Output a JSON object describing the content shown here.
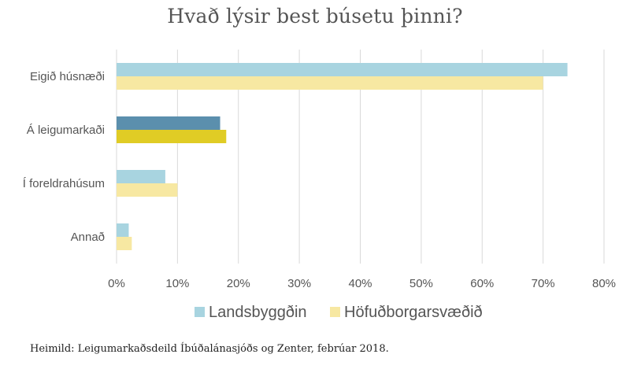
{
  "chart_data": {
    "type": "bar",
    "orientation": "horizontal",
    "title": "Hvað lýsir best búsetu þinni?",
    "categories": [
      "Eigið húsnæði",
      "Á leigumarkaði",
      "Í foreldrahúsum",
      "Annað"
    ],
    "series": [
      {
        "name": "Landsbyggðin",
        "values": [
          74,
          17,
          8,
          2
        ],
        "color": "#a8d4e0",
        "highlight_color": "#5b8fad"
      },
      {
        "name": "Höfuðborgarsvæðið",
        "values": [
          70,
          18,
          10,
          2.5
        ],
        "color": "#f7e8a2",
        "highlight_color": "#e0cc25"
      }
    ],
    "highlight_category": "Á leigumarkaði",
    "xlim": [
      0,
      80
    ],
    "xticks": [
      "0%",
      "10%",
      "20%",
      "30%",
      "40%",
      "50%",
      "60%",
      "70%",
      "80%"
    ],
    "grid": true,
    "legend_position": "bottom"
  },
  "source": "Heimild: Leigumarkaðsdeild Íbúðalánasjóðs og Zenter, febrúar 2018."
}
